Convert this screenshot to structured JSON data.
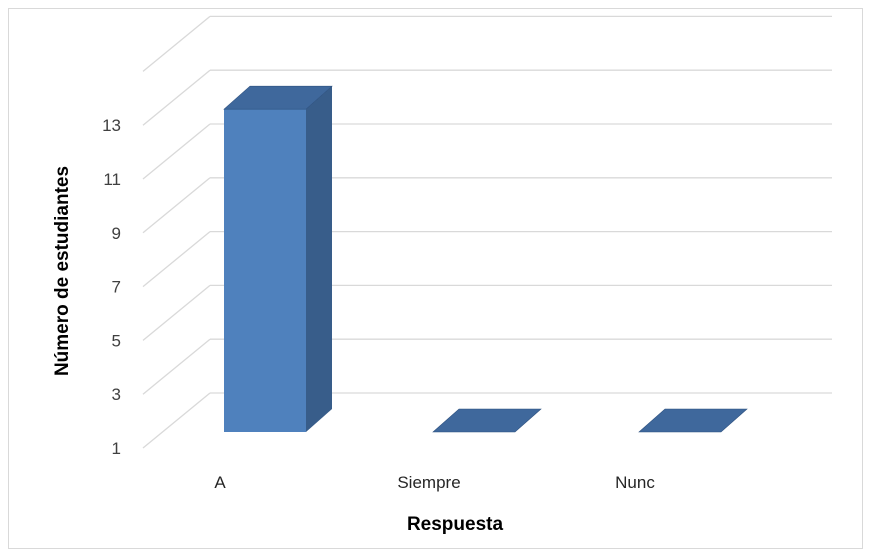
{
  "chart_data": {
    "type": "bar",
    "style": "3d-column",
    "title": "",
    "xlabel": "Respuesta",
    "ylabel": "Número de estudiantes",
    "categories": [
      "A",
      "Siempre",
      "Nunc"
    ],
    "values": [
      13,
      1,
      1
    ],
    "ylim": [
      1,
      15
    ],
    "yticks": [
      1,
      3,
      5,
      7,
      9,
      11,
      13
    ],
    "grid": true,
    "legend": "none",
    "colors": {
      "bar_front": "#4f81bd",
      "bar_side": "#385d8a",
      "bar_top": "#3f689c",
      "grid": "#d9d9d9"
    }
  }
}
